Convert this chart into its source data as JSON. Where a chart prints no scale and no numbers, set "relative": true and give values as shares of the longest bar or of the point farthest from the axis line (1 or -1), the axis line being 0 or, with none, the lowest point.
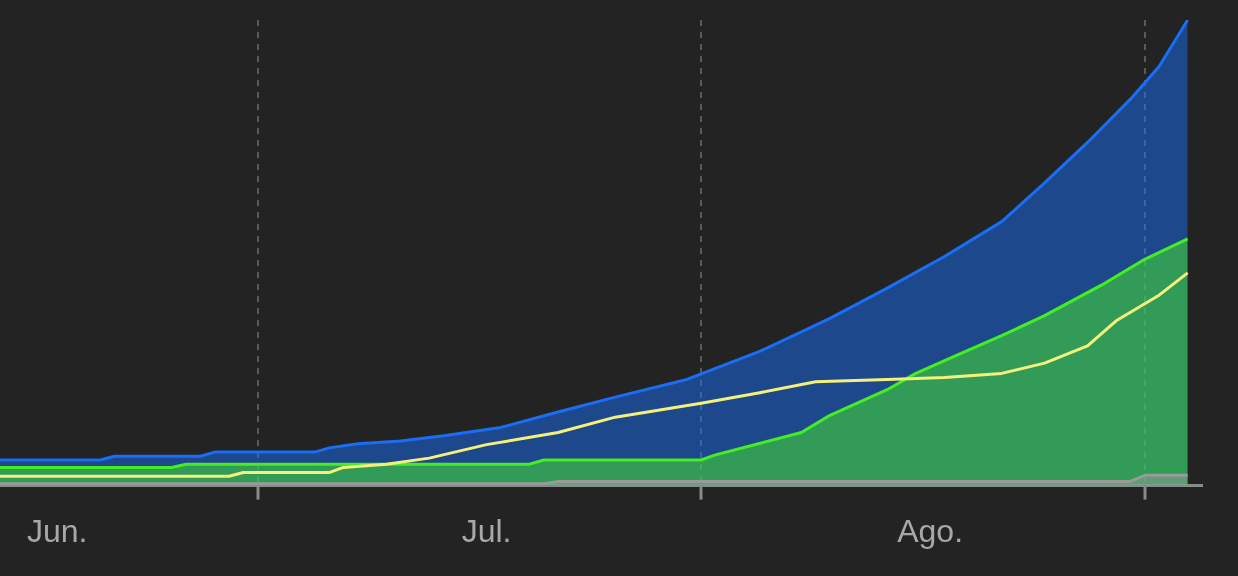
{
  "chart_data": {
    "type": "area",
    "relative": true,
    "grid": "x",
    "legend": false,
    "xlim": [
      "--05-28",
      "--08-20"
    ],
    "xticks": [
      {
        "value": "--06-01",
        "label": "Jun."
      },
      {
        "value": "--06-15",
        "label": null
      },
      {
        "value": "--07-01",
        "label": "Jul."
      },
      {
        "value": "--07-16",
        "label": null
      },
      {
        "value": "--08-01",
        "label": "Ago."
      },
      {
        "value": "--08-16",
        "label": null
      }
    ],
    "series": [
      {
        "type": "area",
        "color": "#1a6ef5",
        "x": [
          "--05-28",
          "--06-04",
          "--06-05",
          "--06-11",
          "--06-12",
          "--06-19",
          "--06-20",
          "--06-22",
          "--06-25",
          "--06-28",
          "--07-02",
          "--07-06",
          "--07-10",
          "--07-15",
          "--07-16",
          "--07-20",
          "--07-25",
          "--07-29",
          "--08-02",
          "--08-06",
          "--08-09",
          "--08-12",
          "--08-15",
          "--08-17",
          "--08-19"
        ],
        "values": [
          0.055,
          0.055,
          0.063,
          0.063,
          0.072,
          0.072,
          0.081,
          0.09,
          0.096,
          0.107,
          0.125,
          0.158,
          0.19,
          0.228,
          0.24,
          0.287,
          0.359,
          0.424,
          0.492,
          0.567,
          0.65,
          0.737,
          0.83,
          0.9,
          1
        ]
      },
      {
        "type": "area",
        "color": "#44ee22",
        "x": [
          "--05-28",
          "--06-09",
          "--06-10",
          "--07-04",
          "--07-05",
          "--07-16",
          "--07-17",
          "--07-20",
          "--07-23",
          "--07-25",
          "--07-29",
          "--07-31",
          "--08-03",
          "--08-06",
          "--08-09",
          "--08-13",
          "--08-16",
          "--08-19"
        ],
        "values": [
          0.039,
          0.039,
          0.046,
          0.046,
          0.055,
          0.055,
          0.066,
          0.09,
          0.114,
          0.151,
          0.206,
          0.241,
          0.282,
          0.322,
          0.365,
          0.431,
          0.486,
          0.53
        ]
      },
      {
        "type": "area",
        "color": "#9a9a9a",
        "x": [
          "--05-28",
          "--07-05",
          "--07-06",
          "--08-15",
          "--08-16",
          "--08-19"
        ],
        "values": [
          0.004,
          0.004,
          0.009,
          0.009,
          0.022,
          0.022
        ]
      },
      {
        "type": "line",
        "color": "#f5f07a",
        "x": [
          "--05-28",
          "--06-13",
          "--06-14",
          "--06-20",
          "--06-21",
          "--06-24",
          "--06-27",
          "--07-01",
          "--07-06",
          "--07-10",
          "--07-16",
          "--07-20",
          "--07-24",
          "--07-29",
          "--08-02",
          "--08-06",
          "--08-09",
          "--08-12",
          "--08-14",
          "--08-17",
          "--08-19"
        ],
        "values": [
          0.02,
          0.02,
          0.028,
          0.028,
          0.039,
          0.046,
          0.059,
          0.088,
          0.114,
          0.147,
          0.177,
          0.199,
          0.223,
          0.228,
          0.232,
          0.241,
          0.263,
          0.3,
          0.354,
          0.409,
          0.457
        ]
      }
    ]
  }
}
